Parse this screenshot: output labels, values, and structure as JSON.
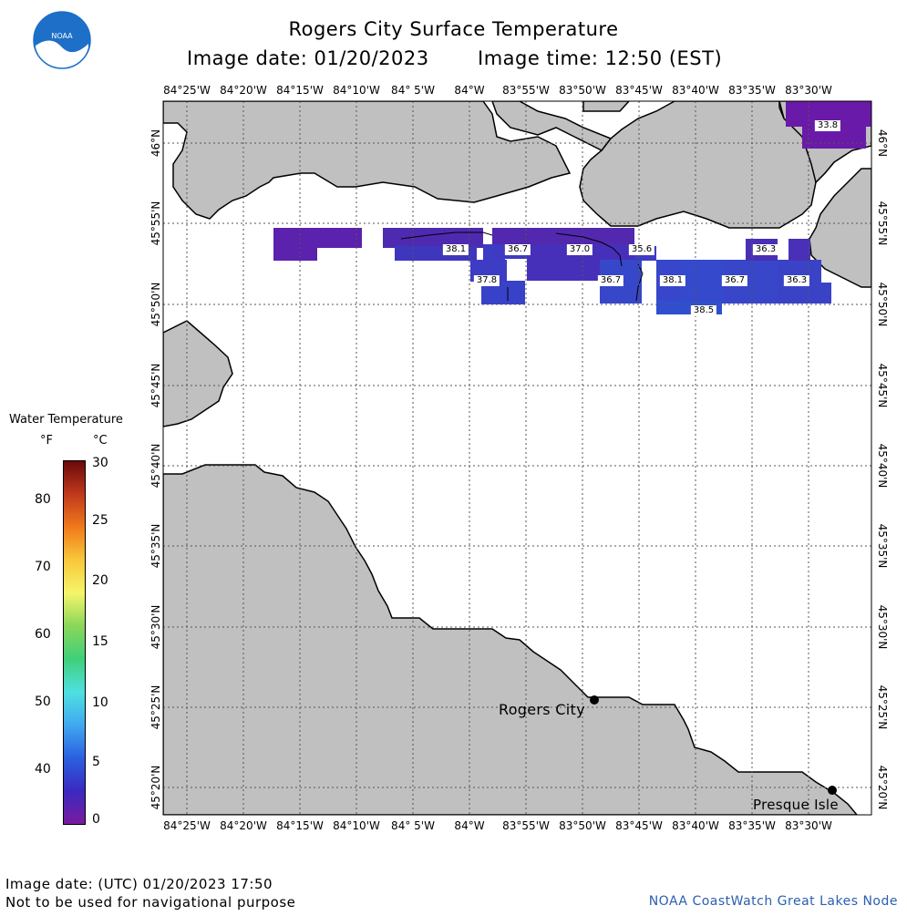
{
  "header": {
    "title": "Rogers City Surface Temperature",
    "image_date": "Image date: 01/20/2023",
    "image_time": "Image time: 12:50 (EST)"
  },
  "logo": {
    "text": "NOAA",
    "icon": "noaa-logo-icon"
  },
  "map": {
    "lon_labels": [
      "84°25'W",
      "84°20'W",
      "84°15'W",
      "84°10'W",
      "84° 5'W",
      "84°W",
      "83°55'W",
      "83°50'W",
      "83°45'W",
      "83°40'W",
      "83°35'W",
      "83°30'W"
    ],
    "lat_labels": [
      "46°N",
      "45°55'N",
      "45°50'N",
      "45°45'N",
      "45°40'N",
      "45°35'N",
      "45°30'N",
      "45°25'N",
      "45°20'N"
    ],
    "land_color": "#c0c0c0",
    "water_color": "#ffffff",
    "temperature_labels": [
      "33.8",
      "38.1",
      "36.7",
      "37.0",
      "35.6",
      "36.3",
      "37.8",
      "36.7",
      "38.1",
      "36.7",
      "36.3",
      "38.5"
    ],
    "places": [
      {
        "name": "Rogers City"
      },
      {
        "name": "Presque Isle"
      }
    ]
  },
  "legend": {
    "title": "Water Temperature",
    "unit_f": "°F",
    "unit_c": "°C",
    "f_ticks": [
      "80",
      "70",
      "60",
      "50",
      "40"
    ],
    "c_ticks": [
      "30",
      "25",
      "20",
      "15",
      "10",
      "5",
      "0"
    ],
    "colors": [
      "#6a0a0a",
      "#c0391c",
      "#f07a1a",
      "#f8c83a",
      "#f5f56a",
      "#8ad65a",
      "#3fd07a",
      "#4fe0e0",
      "#40a8f0",
      "#2b60e0",
      "#3a2ac0",
      "#7a1aa0"
    ]
  },
  "footer": {
    "utc": "Image date: (UTC) 01/20/2023  17:50",
    "disclaimer": "Not to be used for navigational purpose",
    "credit": "NOAA CoastWatch Great Lakes Node"
  }
}
